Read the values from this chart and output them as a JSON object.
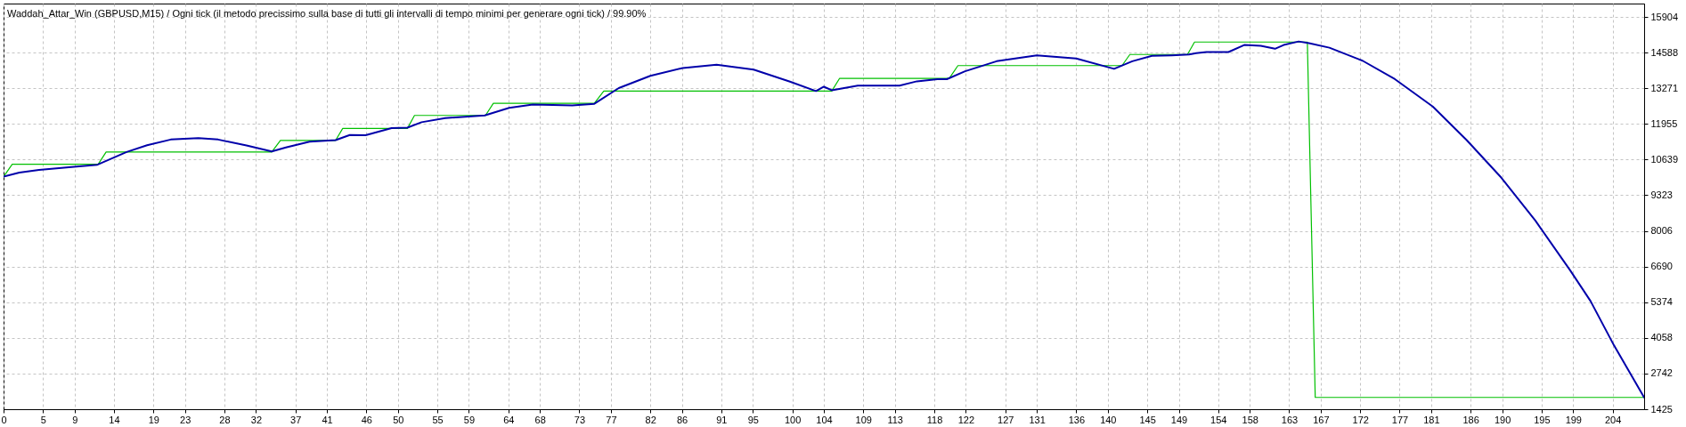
{
  "chart_data": {
    "type": "line",
    "title": "Waddah_Attar_Win (GBPUSD,M15) / Ogni tick (il metodo precissimo sulla base di tutti gli intervalli di tempo minimi per generare ogni tick) / 99.90%",
    "xlim": [
      0,
      208
    ],
    "xticks": [
      0,
      5,
      9,
      14,
      19,
      23,
      28,
      32,
      37,
      41,
      46,
      50,
      55,
      59,
      64,
      68,
      73,
      77,
      82,
      86,
      91,
      95,
      100,
      104,
      109,
      113,
      118,
      122,
      127,
      131,
      136,
      140,
      145,
      149,
      154,
      158,
      163,
      167,
      172,
      177,
      181,
      186,
      190,
      195,
      199,
      204
    ],
    "ylim": [
      1425,
      16400
    ],
    "yticks": [
      1425,
      2742,
      4058,
      5374,
      6690,
      8006,
      9323,
      10639,
      11955,
      13271,
      14588,
      15904
    ],
    "grid": true,
    "series": [
      {
        "color": "#00c000",
        "x": [
          0,
          1.1,
          12,
          13,
          34,
          35.1,
          42.1,
          43,
          51.2,
          52.1,
          61.1,
          62.1,
          74.9,
          76.1,
          105,
          106,
          119.9,
          121,
          141.8,
          142.8,
          150.1,
          151,
          165.3,
          166.3,
          208
        ],
        "values": [
          10010,
          10470,
          10470,
          10920,
          10920,
          11350,
          11350,
          11790,
          11790,
          12270,
          12270,
          12720,
          12720,
          13170,
          13170,
          13640,
          13640,
          14110,
          14110,
          14520,
          14520,
          14980,
          14980,
          1860,
          1860
        ]
      },
      {
        "color": "#0000aa",
        "x": [
          0,
          2,
          4.5,
          8.3,
          11.9,
          15.6,
          18.2,
          21.2,
          24.7,
          27.2,
          30.8,
          34,
          35.8,
          38.8,
          42.1,
          43.9,
          45.9,
          49.2,
          51.2,
          53,
          56,
          61,
          64.1,
          67.1,
          72.1,
          74.9,
          78,
          82,
          86.1,
          90.4,
          95.1,
          99.7,
          103,
          104,
          105,
          108.3,
          113.6,
          115.8,
          118.4,
          119.6,
          121.9,
          125.9,
          131,
          136,
          140.8,
          143.1,
          145.6,
          148.1,
          150.3,
          151.2,
          152.5,
          155.3,
          157.3,
          159.4,
          161.2,
          162.3,
          164.2,
          165.5,
          168.1,
          172.3,
          176.4,
          181.2,
          185.5,
          189.9,
          194.2,
          198.6,
          201.2,
          204.2,
          208
        ],
        "values": [
          10010,
          10160,
          10260,
          10360,
          10450,
          10920,
          11170,
          11380,
          11430,
          11380,
          11160,
          10940,
          11090,
          11300,
          11360,
          11550,
          11540,
          11800,
          11820,
          12020,
          12170,
          12270,
          12550,
          12670,
          12640,
          12700,
          13280,
          13730,
          14020,
          14140,
          13960,
          13520,
          13170,
          13330,
          13200,
          13370,
          13370,
          13530,
          13610,
          13610,
          13900,
          14270,
          14490,
          14370,
          13990,
          14270,
          14470,
          14490,
          14520,
          14570,
          14610,
          14610,
          14870,
          14840,
          14730,
          14870,
          15000,
          14940,
          14770,
          14290,
          13610,
          12600,
          11360,
          9970,
          8390,
          6560,
          5420,
          3770,
          1860
        ]
      }
    ]
  }
}
